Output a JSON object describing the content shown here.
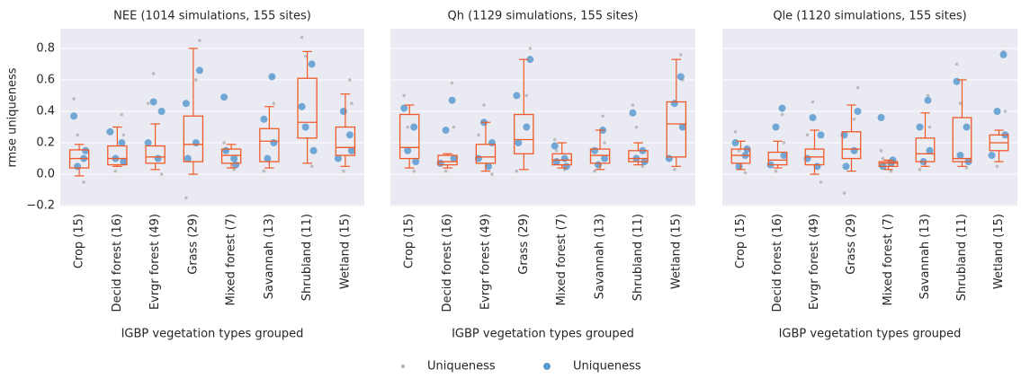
{
  "chart_data": [
    {
      "type": "box",
      "title": "NEE (1014 simulations, 155 sites)",
      "ylabel": "rmse uniqueness",
      "xlabel": "IGBP vegetation types grouped",
      "categories": [
        "Crop (15)",
        "Decid forest (16)",
        "Evrgr forest (49)",
        "Grass (29)",
        "Mixed forest (7)",
        "Savannah (13)",
        "Shrubland (11)",
        "Wetland (15)"
      ],
      "ylim": [
        -0.205,
        0.925
      ],
      "yticks": [
        {
          "value": -0.2,
          "label": "−0.2"
        },
        {
          "value": 0,
          "label": "0.0"
        },
        0.2,
        0.4,
        0.6,
        0.8
      ],
      "grid": true,
      "box_color": "#f05a28",
      "boxes": [
        {
          "whislo": -0.01,
          "q1": 0.04,
          "median": 0.1,
          "q3": 0.155,
          "whishi": 0.19
        },
        {
          "whislo": 0.05,
          "q1": 0.06,
          "median": 0.1,
          "q3": 0.18,
          "whishi": 0.3
        },
        {
          "whislo": 0.03,
          "q1": 0.07,
          "median": 0.11,
          "q3": 0.18,
          "whishi": 0.32
        },
        {
          "whislo": 0.0,
          "q1": 0.08,
          "median": 0.19,
          "q3": 0.37,
          "whishi": 0.8
        },
        {
          "whislo": 0.04,
          "q1": 0.07,
          "median": 0.12,
          "q3": 0.16,
          "whishi": 0.19
        },
        {
          "whislo": 0.04,
          "q1": 0.08,
          "median": 0.21,
          "q3": 0.29,
          "whishi": 0.43
        },
        {
          "whislo": 0.07,
          "q1": 0.23,
          "median": 0.33,
          "q3": 0.61,
          "whishi": 0.78
        },
        {
          "whislo": 0.05,
          "q1": 0.12,
          "median": 0.17,
          "q3": 0.3,
          "whishi": 0.51
        }
      ],
      "series": [
        {
          "name": "Uniqueness",
          "color": "#b0b0b0",
          "values": [
            [
              0.48,
              -0.05,
              0.25
            ],
            [
              0.38,
              0.02,
              0.25
            ],
            [
              0.64,
              0.0,
              0.45
            ],
            [
              0.85,
              -0.15,
              0.6
            ],
            [
              0.2,
              0.03,
              0.15
            ],
            [
              0.62,
              0.02,
              0.45
            ],
            [
              0.87,
              0.05,
              0.75
            ],
            [
              0.6,
              0.02,
              0.45
            ]
          ]
        },
        {
          "name": "Uniqueness",
          "color": "#5b9bd0",
          "values": [
            [
              0.37,
              0.1,
              0.05,
              0.15
            ],
            [
              0.2,
              0.1,
              0.08,
              0.27
            ],
            [
              0.46,
              0.4,
              0.2,
              0.1
            ],
            [
              0.66,
              0.45,
              0.2,
              0.1
            ],
            [
              0.49,
              0.1,
              0.15,
              0.06
            ],
            [
              0.62,
              0.35,
              0.2,
              0.1
            ],
            [
              0.43,
              0.7,
              0.3,
              0.15
            ],
            [
              0.25,
              0.4,
              0.15,
              0.1
            ]
          ]
        }
      ]
    },
    {
      "type": "box",
      "title": "Qh (1129 simulations, 155 sites)",
      "xlabel": "IGBP vegetation types grouped",
      "categories": [
        "Crop (15)",
        "Decid forest (16)",
        "Evrgr forest (49)",
        "Grass (29)",
        "Mixed forest (7)",
        "Savannah (13)",
        "Shrubland (11)",
        "Wetland (15)"
      ],
      "ylim": [
        -0.205,
        0.925
      ],
      "yticks": [
        -0.2,
        0,
        0.2,
        0.4,
        0.6,
        0.8
      ],
      "grid": true,
      "box_color": "#f05a28",
      "boxes": [
        {
          "whislo": 0.04,
          "q1": 0.1,
          "median": 0.17,
          "q3": 0.38,
          "whishi": 0.44
        },
        {
          "whislo": 0.04,
          "q1": 0.06,
          "median": 0.08,
          "q3": 0.12,
          "whishi": 0.13
        },
        {
          "whislo": 0.02,
          "q1": 0.07,
          "median": 0.11,
          "q3": 0.19,
          "whishi": 0.33
        },
        {
          "whislo": 0.03,
          "q1": 0.13,
          "median": 0.22,
          "q3": 0.38,
          "whishi": 0.73
        },
        {
          "whislo": 0.04,
          "q1": 0.06,
          "median": 0.09,
          "q3": 0.13,
          "whishi": 0.2
        },
        {
          "whislo": 0.03,
          "q1": 0.07,
          "median": 0.12,
          "q3": 0.16,
          "whishi": 0.28
        },
        {
          "whislo": 0.06,
          "q1": 0.08,
          "median": 0.1,
          "q3": 0.15,
          "whishi": 0.2
        },
        {
          "whislo": 0.05,
          "q1": 0.11,
          "median": 0.32,
          "q3": 0.46,
          "whishi": 0.73
        }
      ],
      "series": [
        {
          "color": "#b0b0b0",
          "values": [
            [
              0.5,
              0.02,
              0.3
            ],
            [
              0.58,
              0.02,
              0.3
            ],
            [
              0.44,
              0.0,
              0.25
            ],
            [
              0.8,
              0.02,
              0.5
            ],
            [
              0.22,
              0.03,
              0.15
            ],
            [
              0.37,
              0.02,
              0.2
            ],
            [
              0.44,
              0.05,
              0.3
            ],
            [
              0.76,
              0.03,
              0.6
            ]
          ]
        },
        {
          "color": "#5b9bd0",
          "values": [
            [
              0.42,
              0.3,
              0.15,
              0.08
            ],
            [
              0.47,
              0.28,
              0.1,
              0.07
            ],
            [
              0.33,
              0.2,
              0.1,
              0.05
            ],
            [
              0.73,
              0.5,
              0.3,
              0.2
            ],
            [
              0.18,
              0.1,
              0.08,
              0.05
            ],
            [
              0.28,
              0.15,
              0.1,
              0.06
            ],
            [
              0.39,
              0.15,
              0.1,
              0.08
            ],
            [
              0.62,
              0.45,
              0.3,
              0.1
            ]
          ]
        }
      ]
    },
    {
      "type": "box",
      "title": "Qle (1120 simulations, 155 sites)",
      "xlabel": "IGBP vegetation types grouped",
      "categories": [
        "Crop (15)",
        "Decid forest (16)",
        "Evrgr forest (49)",
        "Grass (29)",
        "Mixed forest (7)",
        "Savannah (13)",
        "Shrubland (11)",
        "Wetland (15)"
      ],
      "ylim": [
        -0.205,
        0.925
      ],
      "yticks": [
        -0.2,
        0,
        0.2,
        0.4,
        0.6,
        0.8
      ],
      "grid": true,
      "box_color": "#f05a28",
      "boxes": [
        {
          "whislo": 0.03,
          "q1": 0.07,
          "median": 0.12,
          "q3": 0.16,
          "whishi": 0.21
        },
        {
          "whislo": 0.04,
          "q1": 0.06,
          "median": 0.09,
          "q3": 0.14,
          "whishi": 0.21
        },
        {
          "whislo": 0.0,
          "q1": 0.06,
          "median": 0.11,
          "q3": 0.16,
          "whishi": 0.28
        },
        {
          "whislo": 0.02,
          "q1": 0.1,
          "median": 0.16,
          "q3": 0.27,
          "whishi": 0.44
        },
        {
          "whislo": 0.03,
          "q1": 0.05,
          "median": 0.07,
          "q3": 0.08,
          "whishi": 0.09
        },
        {
          "whislo": 0.05,
          "q1": 0.08,
          "median": 0.13,
          "q3": 0.23,
          "whishi": 0.39
        },
        {
          "whislo": 0.05,
          "q1": 0.08,
          "median": 0.1,
          "q3": 0.36,
          "whishi": 0.6
        },
        {
          "whislo": 0.08,
          "q1": 0.15,
          "median": 0.2,
          "q3": 0.25,
          "whishi": 0.28
        }
      ],
      "series": [
        {
          "color": "#b0b0b0",
          "values": [
            [
              0.27,
              0.01,
              0.15
            ],
            [
              0.38,
              0.02,
              0.2
            ],
            [
              0.46,
              -0.05,
              0.25
            ],
            [
              0.55,
              -0.12,
              0.35
            ],
            [
              0.15,
              0.02,
              0.1
            ],
            [
              0.5,
              0.03,
              0.3
            ],
            [
              0.7,
              0.04,
              0.45
            ],
            [
              0.78,
              0.05,
              0.4
            ]
          ]
        },
        {
          "color": "#5b9bd0",
          "values": [
            [
              0.2,
              0.12,
              0.05,
              0.16
            ],
            [
              0.42,
              0.3,
              0.12,
              0.06
            ],
            [
              0.36,
              0.25,
              0.1,
              0.05
            ],
            [
              0.4,
              0.25,
              0.15,
              0.05
            ],
            [
              0.36,
              0.07,
              0.05,
              0.09
            ],
            [
              0.47,
              0.3,
              0.15,
              0.08
            ],
            [
              0.59,
              0.3,
              0.12,
              0.08
            ],
            [
              0.76,
              0.4,
              0.25,
              0.12
            ]
          ]
        }
      ]
    }
  ]
}
